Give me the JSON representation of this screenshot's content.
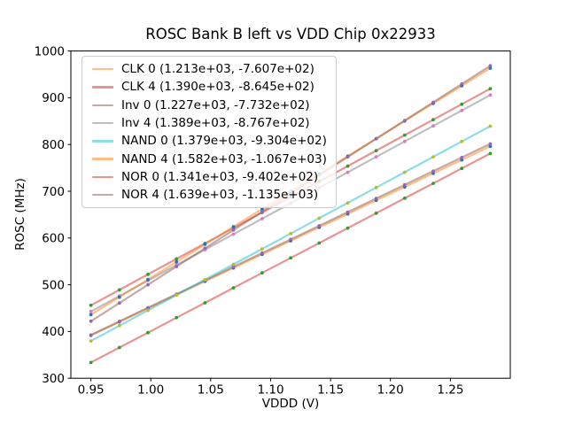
{
  "chart_data": {
    "type": "line",
    "title": "ROSC Bank B left vs VDD Chip 0x22933",
    "xlabel": "VDDD (V)",
    "ylabel": "ROSC (MHz)",
    "xlim": [
      0.9333,
      1.3
    ],
    "ylim": [
      300,
      1000
    ],
    "xticks": [
      0.95,
      1.0,
      1.05,
      1.1,
      1.15,
      1.2,
      1.25
    ],
    "xtick_labels": [
      "0.95",
      "1.00",
      "1.05",
      "1.10",
      "1.15",
      "1.20",
      "1.25"
    ],
    "yticks": [
      300,
      400,
      500,
      600,
      700,
      800,
      900,
      1000
    ],
    "ytick_labels": [
      "300",
      "400",
      "500",
      "600",
      "700",
      "800",
      "900",
      "1000"
    ],
    "grid": false,
    "legend_position": "upper left",
    "x_values": [
      0.95,
      0.9738,
      0.9976,
      1.0214,
      1.0452,
      1.069,
      1.0929,
      1.1167,
      1.1405,
      1.1643,
      1.1881,
      1.2119,
      1.2357,
      1.2595,
      1.2833
    ],
    "y_rule": "y = slope * x + intercept",
    "series": [
      {
        "name": "CLK 0",
        "label": "CLK 0 (1.213e+03, -7.607e+02)",
        "slope": 1213,
        "intercept": -760.7,
        "line_color": "#ff7f0e",
        "line_alpha": 0.5,
        "marker_color": "#1f77b4"
      },
      {
        "name": "CLK 4",
        "label": "CLK 4 (1.390e+03, -8.645e+02)",
        "slope": 1390,
        "intercept": -864.5,
        "line_color": "#d62728",
        "line_alpha": 0.5,
        "marker_color": "#2ca02c"
      },
      {
        "name": "Inv 0",
        "label": "Inv 0 (1.227e+03, -7.732e+02)",
        "slope": 1227,
        "intercept": -773.2,
        "line_color": "#8c564b",
        "line_alpha": 0.5,
        "marker_color": "#9467bd"
      },
      {
        "name": "Inv 4",
        "label": "Inv 4 (1.389e+03, -8.767e+02)",
        "slope": 1389,
        "intercept": -876.7,
        "line_color": "#7f7f7f",
        "line_alpha": 0.5,
        "marker_color": "#e377c2"
      },
      {
        "name": "NAND 0",
        "label": "NAND 0 (1.379e+03, -9.304e+02)",
        "slope": 1379,
        "intercept": -930.4,
        "line_color": "#17becf",
        "line_alpha": 0.5,
        "marker_color": "#bcbd22"
      },
      {
        "name": "NAND 4",
        "label": "NAND 4 (1.582e+03, -1.067e+03)",
        "slope": 1582,
        "intercept": -1067.0,
        "line_color": "#ff7f0e",
        "line_alpha": 0.5,
        "marker_color": "#1f77b4"
      },
      {
        "name": "NOR 0",
        "label": "NOR 0 (1.341e+03, -9.402e+02)",
        "slope": 1341,
        "intercept": -940.2,
        "line_color": "#d62728",
        "line_alpha": 0.5,
        "marker_color": "#2ca02c"
      },
      {
        "name": "NOR 4",
        "label": "NOR 4 (1.639e+03, -1.135e+03)",
        "slope": 1639,
        "intercept": -1135.0,
        "line_color": "#8c564b",
        "line_alpha": 0.5,
        "marker_color": "#9467bd"
      }
    ]
  }
}
